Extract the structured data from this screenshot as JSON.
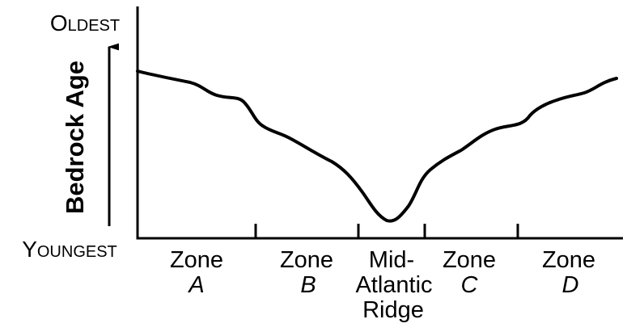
{
  "axis": {
    "top": "Oldest",
    "bottom": "Youngest",
    "label": "Bedrock Age"
  },
  "zones": [
    {
      "name": "Zone",
      "letter": "A"
    },
    {
      "name": "Zone",
      "letter": "B"
    },
    {
      "lines": [
        "Mid-",
        "Atlantic",
        "Ridge"
      ]
    },
    {
      "name": "Zone",
      "letter": "C"
    },
    {
      "name": "Zone",
      "letter": "D"
    }
  ]
}
